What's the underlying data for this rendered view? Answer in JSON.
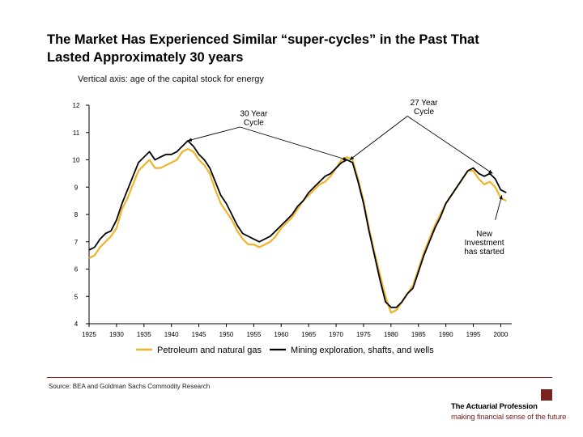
{
  "slide": {
    "title_line1": "The Market Has Experienced Similar “super-cycles” in the Past That",
    "title_line2": "Lasted Approximately 30 years",
    "subtitle": "Vertical axis:  age of the capital stock for energy",
    "source": "Source: BEA and Goldman Sachs Commodity Research",
    "logo_name": "The Actuarial Profession",
    "logo_tagline": "making financial sense of the future",
    "accent_color": "#7a2420"
  },
  "chart_data": {
    "type": "line",
    "title": "",
    "xlabel": "",
    "ylabel": "age of the capital stock for energy",
    "xlim": [
      1925,
      2002
    ],
    "ylim": [
      4,
      12
    ],
    "x_ticks": [
      "1925",
      "1930",
      "1935",
      "1940",
      "1945",
      "1950",
      "1955",
      "1960",
      "1965",
      "1970",
      "1975",
      "1980",
      "1985",
      "1990",
      "1995",
      "2000"
    ],
    "y_ticks": [
      "4",
      "5",
      "6",
      "7",
      "8",
      "9",
      "10",
      "11",
      "12"
    ],
    "series": [
      {
        "name": "Petroleum and natural gas",
        "color": "#f0b429",
        "x": [
          1925,
          1926,
          1927,
          1928,
          1929,
          1930,
          1931,
          1932,
          1933,
          1934,
          1935,
          1936,
          1937,
          1938,
          1939,
          1940,
          1941,
          1942,
          1943,
          1944,
          1945,
          1946,
          1947,
          1948,
          1949,
          1950,
          1951,
          1952,
          1953,
          1954,
          1955,
          1956,
          1957,
          1958,
          1959,
          1960,
          1961,
          1962,
          1963,
          1964,
          1965,
          1966,
          1967,
          1968,
          1969,
          1970,
          1971,
          1972,
          1973,
          1974,
          1975,
          1976,
          1977,
          1978,
          1979,
          1980,
          1981,
          1982,
          1983,
          1984,
          1985,
          1986,
          1987,
          1988,
          1989,
          1990,
          1991,
          1992,
          1993,
          1994,
          1995,
          1996,
          1997,
          1998,
          1999,
          2000,
          2001
        ],
        "values": [
          6.4,
          6.5,
          6.8,
          7.0,
          7.2,
          7.5,
          8.2,
          8.6,
          9.1,
          9.6,
          9.8,
          10.0,
          9.7,
          9.7,
          9.8,
          9.9,
          10.0,
          10.3,
          10.4,
          10.3,
          10.0,
          9.8,
          9.5,
          8.9,
          8.4,
          8.1,
          7.8,
          7.4,
          7.1,
          6.9,
          6.9,
          6.8,
          6.9,
          7.0,
          7.2,
          7.5,
          7.7,
          7.9,
          8.2,
          8.5,
          8.7,
          8.9,
          9.1,
          9.2,
          9.4,
          9.7,
          10.0,
          10.1,
          10.0,
          9.3,
          8.5,
          7.5,
          6.6,
          5.8,
          5.0,
          4.4,
          4.5,
          4.8,
          5.1,
          5.4,
          6.0,
          6.6,
          7.1,
          7.6,
          8.0,
          8.4,
          8.7,
          9.0,
          9.3,
          9.6,
          9.6,
          9.3,
          9.1,
          9.2,
          9.0,
          8.6,
          8.5
        ]
      },
      {
        "name": "Mining exploration, shafts, and wells",
        "color": "#000000",
        "x": [
          1925,
          1926,
          1927,
          1928,
          1929,
          1930,
          1931,
          1932,
          1933,
          1934,
          1935,
          1936,
          1937,
          1938,
          1939,
          1940,
          1941,
          1942,
          1943,
          1944,
          1945,
          1946,
          1947,
          1948,
          1949,
          1950,
          1951,
          1952,
          1953,
          1954,
          1955,
          1956,
          1957,
          1958,
          1959,
          1960,
          1961,
          1962,
          1963,
          1964,
          1965,
          1966,
          1967,
          1968,
          1969,
          1970,
          1971,
          1972,
          1973,
          1974,
          1975,
          1976,
          1977,
          1978,
          1979,
          1980,
          1981,
          1982,
          1983,
          1984,
          1985,
          1986,
          1987,
          1988,
          1989,
          1990,
          1991,
          1992,
          1993,
          1994,
          1995,
          1996,
          1997,
          1998,
          1999,
          2000,
          2001
        ],
        "values": [
          6.7,
          6.8,
          7.1,
          7.3,
          7.4,
          7.8,
          8.4,
          8.9,
          9.4,
          9.9,
          10.1,
          10.3,
          10.0,
          10.1,
          10.2,
          10.2,
          10.3,
          10.5,
          10.7,
          10.5,
          10.2,
          10.0,
          9.7,
          9.2,
          8.7,
          8.4,
          8.0,
          7.6,
          7.3,
          7.2,
          7.1,
          7.0,
          7.1,
          7.2,
          7.4,
          7.6,
          7.8,
          8.0,
          8.3,
          8.5,
          8.8,
          9.0,
          9.2,
          9.4,
          9.5,
          9.7,
          9.9,
          10.0,
          9.9,
          9.2,
          8.4,
          7.4,
          6.5,
          5.6,
          4.8,
          4.6,
          4.6,
          4.8,
          5.1,
          5.3,
          5.9,
          6.5,
          7.0,
          7.5,
          7.9,
          8.4,
          8.7,
          9.0,
          9.3,
          9.6,
          9.7,
          9.5,
          9.4,
          9.5,
          9.3,
          8.9,
          8.8
        ]
      }
    ],
    "annotations": [
      {
        "lines": [
          "30 Year",
          "Cycle"
        ],
        "x": 1955,
        "y": 11.6,
        "arrow_from": [
          1952.5,
          11.2
        ],
        "arrows_to": [
          [
            1943,
            10.7
          ],
          [
            1972,
            10.0
          ]
        ]
      },
      {
        "lines": [
          "27 Year",
          "Cycle"
        ],
        "x": 1986,
        "y": 12.0,
        "arrow_from": [
          1983,
          11.6
        ],
        "arrows_to": [
          [
            1972.5,
            10.0
          ],
          [
            1998.5,
            9.5
          ]
        ]
      },
      {
        "lines": [
          "New",
          "Investment",
          "has started"
        ],
        "x": 1997,
        "y": 7.2,
        "arrow_from": [
          1999,
          7.8
        ],
        "arrows_to": [
          [
            2000.2,
            8.7
          ]
        ]
      }
    ],
    "legend_position": "bottom",
    "grid": false
  }
}
